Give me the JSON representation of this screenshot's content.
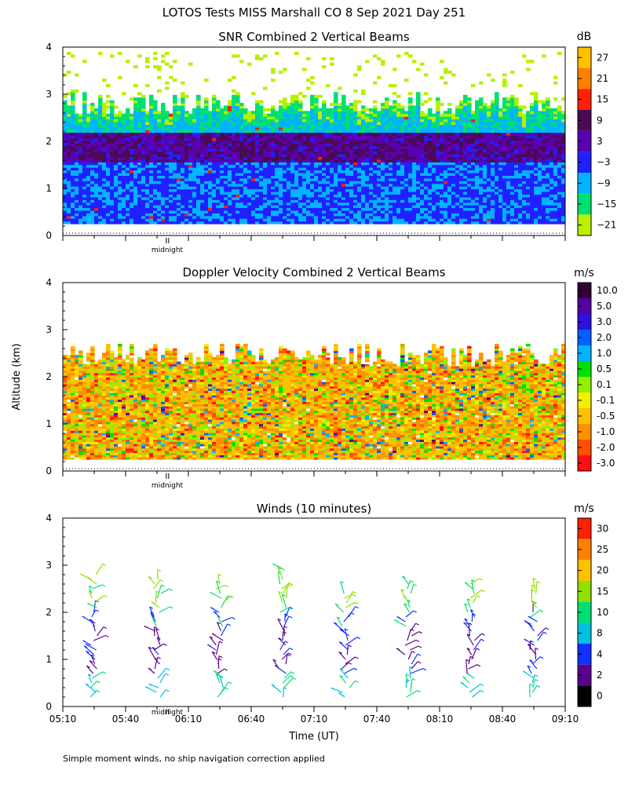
{
  "header": {
    "title": "LOTOS Tests MISS Marshall CO   8 Sep 2021 Day 251"
  },
  "footer": {
    "note": "Simple moment winds, no ship navigation correction applied"
  },
  "chart_data": [
    {
      "type": "heatmap",
      "title": "SNR Combined 2 Vertical Beams",
      "ylabel": "",
      "yticks": [
        "0",
        "1",
        "2",
        "3",
        "4"
      ],
      "ylim": [
        0,
        4
      ],
      "x_time_range": [
        "05:10",
        "09:10"
      ],
      "midnight_marker": {
        "label": "midnight",
        "time": "06:00"
      },
      "colorbar": {
        "unit": "dB",
        "labels": [
          "27",
          "21",
          "15",
          "9",
          "3",
          "−3",
          "−9",
          "−15",
          "−21"
        ],
        "colors": [
          "#ffc000",
          "#ff8000",
          "#ff2000",
          "#4a0a55",
          "#5a00b0",
          "#2020ff",
          "#00b4ff",
          "#00e070",
          "#b8f000"
        ]
      },
      "data_extent_km": [
        0.25,
        3.9
      ],
      "summary_layers": [
        {
          "alt_km": [
            0.25,
            1.6
          ],
          "value_db": -6
        },
        {
          "alt_km": [
            1.6,
            2.2
          ],
          "value_db": 6
        },
        {
          "alt_km": [
            2.2,
            2.6
          ],
          "value_db": -12
        },
        {
          "alt_km": [
            2.6,
            3.0
          ],
          "value_db": -18
        }
      ]
    },
    {
      "type": "heatmap",
      "title": "Doppler Velocity Combined 2 Vertical Beams",
      "ylabel": "Altitude (km)",
      "yticks": [
        "0",
        "1",
        "2",
        "3",
        "4"
      ],
      "ylim": [
        0,
        4
      ],
      "x_time_range": [
        "05:10",
        "09:10"
      ],
      "midnight_marker": {
        "label": "midnight",
        "time": "06:00"
      },
      "colorbar": {
        "unit": "m/s",
        "labels": [
          "10.0",
          "5.0",
          "3.0",
          "2.0",
          "1.0",
          "0.5",
          "0.1",
          "-0.1",
          "-0.5",
          "-1.0",
          "-2.0",
          "-3.0"
        ],
        "colors": [
          "#330033",
          "#5500a0",
          "#3010e0",
          "#0060ff",
          "#00b4ff",
          "#00e000",
          "#90f000",
          "#f0f000",
          "#ffc000",
          "#ff9000",
          "#ff5000",
          "#ff1010"
        ]
      },
      "data_extent_km": [
        0.25,
        2.7
      ],
      "dominant_values_ms": [
        -0.5,
        -1.0,
        0.1
      ]
    },
    {
      "type": "scatter",
      "subtype": "wind-barb-profile",
      "title": "Winds (10 minutes)",
      "xlabel": "Time (UT)",
      "xticks": [
        "05:10",
        "05:40",
        "06:10",
        "06:40",
        "07:10",
        "07:40",
        "08:10",
        "08:40",
        "09:10"
      ],
      "yticks": [
        "0",
        "1",
        "2",
        "3",
        "4"
      ],
      "ylim": [
        0,
        4
      ],
      "midnight_marker": {
        "label": "midnight",
        "time": "06:00"
      },
      "colorbar": {
        "unit": "m/s",
        "labels": [
          "30",
          "25",
          "20",
          "15",
          "10",
          "8",
          "4",
          "2",
          "0"
        ],
        "colors": [
          "#ff2000",
          "#ff8000",
          "#ffc000",
          "#90e000",
          "#00e070",
          "#00c0e0",
          "#1030ff",
          "#5a0090",
          "#000000"
        ]
      },
      "profiles": [
        {
          "time": "05:25",
          "top_km": 2.9
        },
        {
          "time": "05:55",
          "top_km": 2.8
        },
        {
          "time": "06:25",
          "top_km": 2.7
        },
        {
          "time": "06:55",
          "top_km": 2.95
        },
        {
          "time": "07:25",
          "top_km": 2.5
        },
        {
          "time": "07:55",
          "top_km": 2.7
        },
        {
          "time": "08:25",
          "top_km": 2.65
        },
        {
          "time": "08:55",
          "top_km": 2.6
        }
      ]
    }
  ]
}
